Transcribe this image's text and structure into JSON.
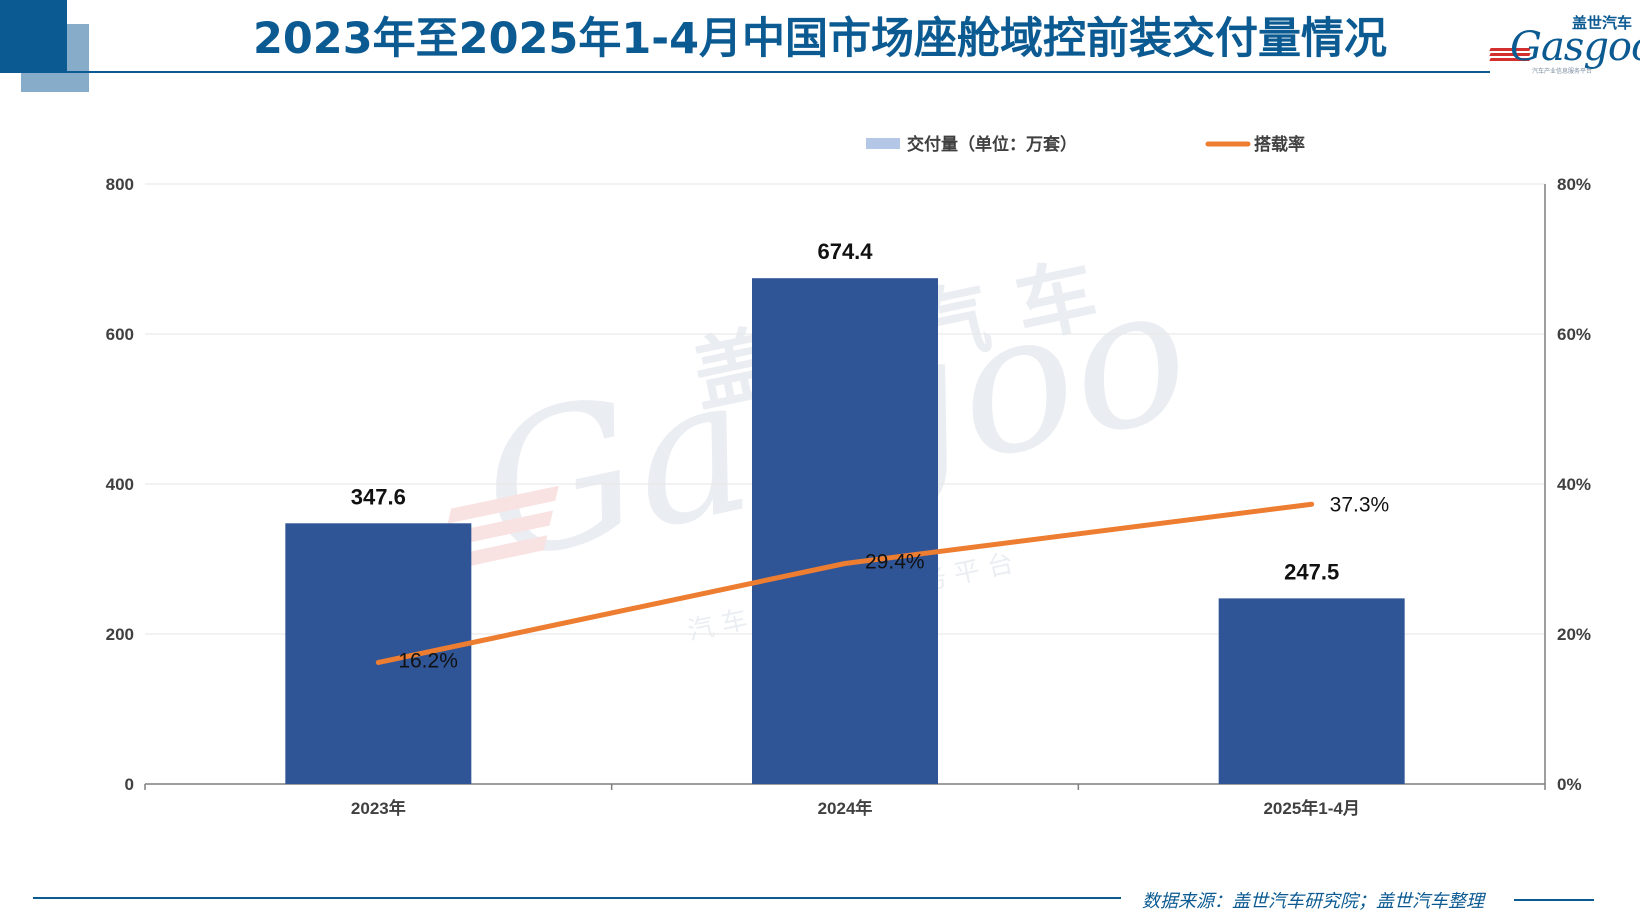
{
  "title": "2023年至2025年1-4月中国市场座舱域控前装交付量情况",
  "logo": {
    "cn": "盖世汽车",
    "en": "Gasgoo",
    "tagline": "汽车产业信息服务平台"
  },
  "watermark": {
    "cn": "盖世汽车",
    "en": "Gasgoo",
    "tagline": "汽车产业信息服务平台"
  },
  "source": "数据来源：盖世汽车研究院；盖世汽车整理",
  "colors": {
    "brand": "#0b5a92",
    "bar": "#2f5597",
    "line": "#ed7d31",
    "legend_bar": "#b4c7e7"
  },
  "chart_data": {
    "type": "bar",
    "categories": [
      "2023年",
      "2024年",
      "2025年1-4月"
    ],
    "series": [
      {
        "name": "交付量（单位：万套）",
        "type": "bar",
        "axis": "left",
        "values": [
          347.6,
          674.4,
          247.5
        ],
        "labels": [
          "347.6",
          "674.4",
          "247.5"
        ]
      },
      {
        "name": "搭载率",
        "type": "line",
        "axis": "right",
        "values": [
          16.2,
          29.4,
          37.3
        ],
        "labels": [
          "16.2%",
          "29.4%",
          "37.3%"
        ]
      }
    ],
    "ylim": [
      0,
      800
    ],
    "yticks": [
      "0",
      "200",
      "400",
      "600",
      "800"
    ],
    "y2lim": [
      0,
      80
    ],
    "y2ticks": [
      "0%",
      "20%",
      "40%",
      "60%",
      "80%"
    ],
    "grid": true,
    "legend_position": "top-right"
  }
}
